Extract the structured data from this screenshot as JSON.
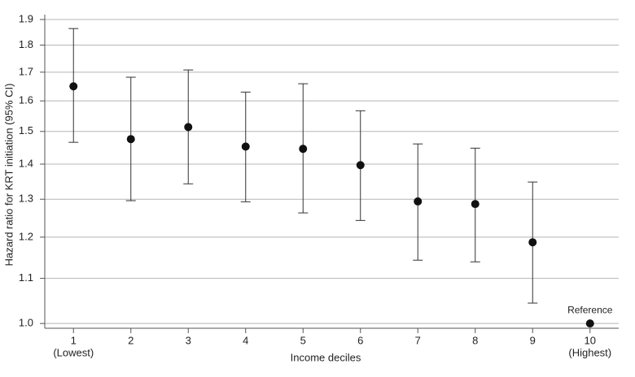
{
  "chart_data": {
    "type": "errorpoint",
    "x_label": "Income deciles",
    "y_label": "Hazard ratio for KRT initiation (95% CI)",
    "categories": [
      "1",
      "2",
      "3",
      "4",
      "5",
      "6",
      "7",
      "8",
      "9",
      "10"
    ],
    "category_sublabels": [
      "(Lowest)",
      null,
      null,
      null,
      null,
      null,
      null,
      null,
      null,
      "(Highest)"
    ],
    "values": [
      1.65,
      1.476,
      1.514,
      1.453,
      1.446,
      1.397,
      1.294,
      1.287,
      1.187,
      1.0
    ],
    "lower": [
      1.466,
      1.296,
      1.343,
      1.293,
      1.263,
      1.243,
      1.143,
      1.139,
      1.044,
      null
    ],
    "upper": [
      1.864,
      1.682,
      1.708,
      1.63,
      1.659,
      1.567,
      1.461,
      1.448,
      1.348,
      null
    ],
    "annotation": {
      "text": "Reference",
      "index": 9
    },
    "color": "#111111",
    "ylim": [
      0.99,
      1.9
    ],
    "yscale": "log",
    "yticks": [
      {
        "value": 1.0,
        "label": "1.0"
      },
      1.1,
      1.2,
      1.3,
      1.4,
      1.5,
      1.6,
      1.7,
      1.8,
      1.9
    ],
    "grid": true
  }
}
